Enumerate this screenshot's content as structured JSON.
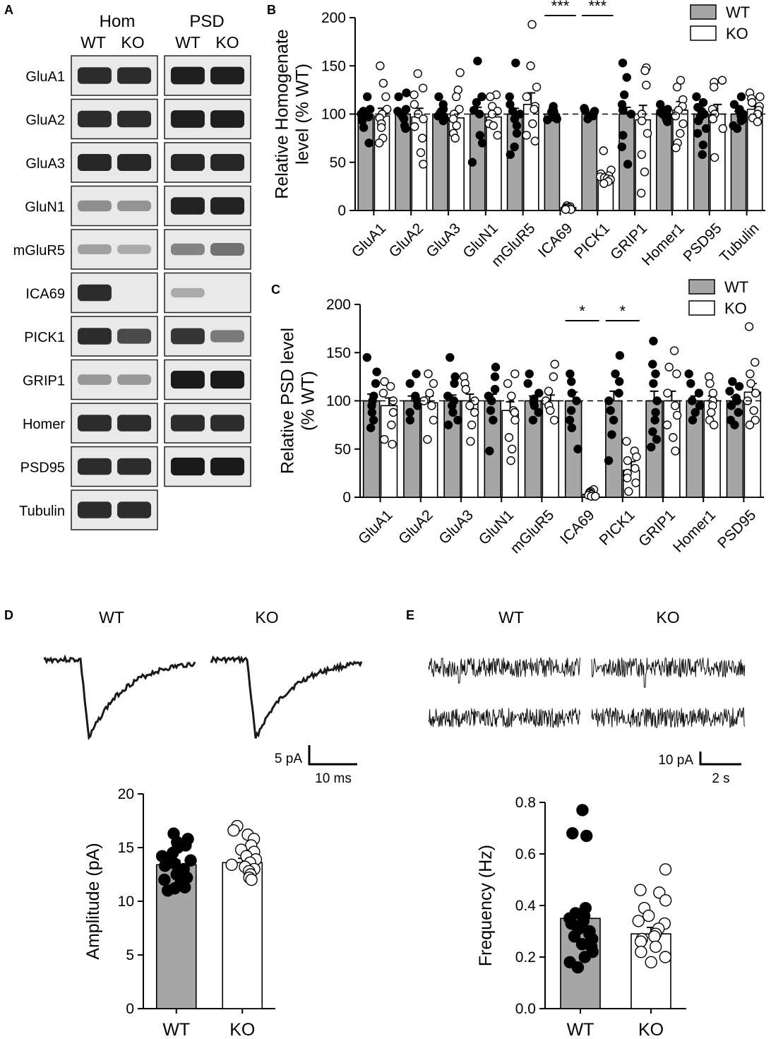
{
  "panel_letters": [
    "A",
    "B",
    "C",
    "D",
    "E"
  ],
  "blot": {
    "groups": [
      {
        "name": "Hom",
        "lanes": [
          "WT",
          "KO"
        ]
      },
      {
        "name": "PSD",
        "lanes": [
          "WT",
          "KO"
        ]
      }
    ],
    "rows": [
      {
        "label": "GluA1",
        "hom": [
          0.85,
          0.85
        ],
        "psd": [
          0.92,
          0.92
        ]
      },
      {
        "label": "GluA2",
        "hom": [
          0.85,
          0.85
        ],
        "psd": [
          0.92,
          0.92
        ]
      },
      {
        "label": "GluA3",
        "hom": [
          0.88,
          0.88
        ],
        "psd": [
          0.88,
          0.88
        ]
      },
      {
        "label": "GluN1",
        "hom": [
          0.35,
          0.32
        ],
        "psd": [
          0.9,
          0.9
        ]
      },
      {
        "label": "mGluR5",
        "hom": [
          0.25,
          0.2
        ],
        "psd": [
          0.4,
          0.5
        ]
      },
      {
        "label": "ICA69",
        "hom": [
          0.85,
          0.0
        ],
        "psd": [
          0.2,
          0.0
        ]
      },
      {
        "label": "PICK1",
        "hom": [
          0.85,
          0.7
        ],
        "psd": [
          0.8,
          0.45
        ]
      },
      {
        "label": "GRIP1",
        "hom": [
          0.3,
          0.3
        ],
        "psd": [
          0.95,
          0.95
        ]
      },
      {
        "label": "Homer",
        "hom": [
          0.85,
          0.85
        ],
        "psd": [
          0.85,
          0.85
        ]
      },
      {
        "label": "PSD95",
        "hom": [
          0.85,
          0.85
        ],
        "psd": [
          0.95,
          0.95
        ]
      },
      {
        "label": "Tubulin",
        "hom": [
          0.85,
          0.85
        ],
        "psd": null
      }
    ]
  },
  "traces": {
    "D": {
      "labels": [
        "WT",
        "KO"
      ],
      "scale_y": "5 pA",
      "scale_x": "10 ms"
    },
    "E": {
      "labels": [
        "WT",
        "KO"
      ],
      "scale_y": "10 pA",
      "scale_x": "2 s"
    }
  },
  "chart_data": [
    {
      "panel": "B",
      "type": "bar",
      "ylabel": "Relative Homogenate level (% WT)",
      "ylabel_lines": [
        "Relative Homogenate",
        "level (% WT)"
      ],
      "ylim": [
        0,
        200
      ],
      "yticks": [
        0,
        50,
        100,
        150,
        200
      ],
      "reference_line": 100,
      "legend": {
        "position": "top-right",
        "entries": [
          "WT",
          "KO"
        ]
      },
      "colors": {
        "WT": "#a6a6a6",
        "KO": "#ffffff"
      },
      "categories": [
        "GluA1",
        "GluA2",
        "GluA3",
        "GluN1",
        "mGluR5",
        "ICA69",
        "PICK1",
        "GRIP1",
        "Homer1",
        "PSD95",
        "Tubulin"
      ],
      "series": [
        {
          "name": "WT",
          "values": [
            100,
            100,
            100,
            100,
            100,
            100,
            100,
            100,
            100,
            100,
            100
          ],
          "sem": [
            4,
            3,
            3,
            7,
            6,
            2,
            2,
            7,
            2,
            5,
            3
          ],
          "points": [
            [
              118,
              105,
              103,
              100,
              98,
              97,
              93,
              86,
              70
            ],
            [
              122,
              118,
              105,
              103,
              100,
              98,
              96,
              95,
              88,
              85
            ],
            [
              118,
              110,
              105,
              103,
              100,
              98,
              95,
              93
            ],
            [
              155,
              118,
              112,
              104,
              100,
              78,
              70,
              50
            ],
            [
              153,
              118,
              110,
              103,
              100,
              95,
              88,
              80,
              66,
              58
            ],
            [
              108,
              105,
              103,
              102,
              100,
              98,
              97,
              95,
              94
            ],
            [
              106,
              104,
              103,
              102,
              100,
              98,
              97,
              95
            ],
            [
              153,
              138,
              120,
              110,
              104,
              100,
              78,
              66,
              48
            ],
            [
              110,
              105,
              103,
              102,
              100,
              98,
              96,
              95,
              92
            ],
            [
              118,
              112,
              107,
              103,
              100,
              97,
              93,
              85,
              80,
              68,
              58
            ],
            [
              118,
              110,
              105,
              103,
              100,
              98,
              95,
              93,
              88,
              85
            ]
          ]
        },
        {
          "name": "KO",
          "values": [
            98,
            97,
            96,
            97,
            110,
            3,
            35,
            94,
            104,
            100,
            105
          ],
          "sem": [
            8,
            9,
            6,
            6,
            12,
            1,
            3,
            15,
            9,
            10,
            3
          ],
          "points": [
            [
              150,
              132,
              118,
              105,
              100,
              96,
              90,
              86,
              75,
              70
            ],
            [
              142,
              127,
              120,
              110,
              100,
              95,
              87,
              75,
              60,
              48
            ],
            [
              143,
              125,
              118,
              105,
              100,
              95,
              88,
              80,
              75
            ],
            [
              120,
              118,
              108,
              103,
              100,
              90,
              88,
              78
            ],
            [
              193,
              150,
              128,
              118,
              108,
              105,
              90,
              78,
              72
            ],
            [
              5,
              4,
              3,
              3,
              2,
              2,
              1,
              1
            ],
            [
              62,
              42,
              38,
              36,
              35,
              34,
              33,
              32,
              30,
              28
            ],
            [
              148,
              145,
              130,
              100,
              93,
              80,
              58,
              40,
              18
            ],
            [
              135,
              128,
              115,
              108,
              104,
              98,
              90,
              80,
              70,
              65
            ],
            [
              135,
              133,
              128,
              105,
              100,
              95,
              85,
              55
            ],
            [
              122,
              118,
              116,
              112,
              108,
              104,
              100,
              96,
              92
            ]
          ]
        }
      ],
      "significance": [
        {
          "category": "ICA69",
          "label": "***"
        },
        {
          "category": "PICK1",
          "label": "***"
        }
      ]
    },
    {
      "panel": "C",
      "type": "bar",
      "ylabel": "Relative PSD level (% WT)",
      "ylabel_lines": [
        "Relative PSD level",
        "(% WT)"
      ],
      "ylim": [
        0,
        200
      ],
      "yticks": [
        0,
        50,
        100,
        150,
        200
      ],
      "reference_line": 100,
      "legend": {
        "position": "top-right",
        "entries": [
          "WT",
          "KO"
        ]
      },
      "colors": {
        "WT": "#a6a6a6",
        "KO": "#ffffff"
      },
      "categories": [
        "GluA1",
        "GluA2",
        "GluA3",
        "GluN1",
        "mGluR5",
        "ICA69",
        "PICK1",
        "GRIP1",
        "Homer1",
        "PSD95"
      ],
      "series": [
        {
          "name": "WT",
          "values": [
            100,
            100,
            100,
            100,
            100,
            100,
            100,
            100,
            100,
            100
          ],
          "sem": [
            7,
            5,
            6,
            7,
            5,
            9,
            10,
            10,
            5,
            4
          ],
          "points": [
            [
              145,
              130,
              118,
              105,
              100,
              95,
              88,
              80,
              72
            ],
            [
              128,
              118,
              105,
              100,
              95,
              88,
              80
            ],
            [
              145,
              125,
              118,
              105,
              100,
              95,
              88,
              80,
              75
            ],
            [
              135,
              125,
              112,
              105,
              100,
              90,
              80,
              48
            ],
            [
              128,
              118,
              108,
              102,
              98,
              95,
              88,
              80
            ],
            [
              128,
              120,
              108,
              100,
              90,
              80,
              72,
              50
            ],
            [
              147,
              128,
              120,
              108,
              100,
              90,
              80,
              65,
              38
            ],
            [
              162,
              138,
              128,
              118,
              100,
              88,
              80,
              68,
              60,
              52
            ],
            [
              128,
              118,
              108,
              100,
              95,
              88,
              80
            ],
            [
              120,
              115,
              110,
              103,
              100,
              95,
              88,
              80,
              75
            ]
          ]
        },
        {
          "name": "KO",
          "values": [
            95,
            98,
            100,
            90,
            100,
            3,
            28,
            100,
            100,
            109
          ],
          "sem": [
            8,
            7,
            7,
            9,
            6,
            1,
            9,
            10,
            5,
            9
          ],
          "points": [
            [
              120,
              115,
              108,
              100,
              88,
              75,
              60,
              55
            ],
            [
              128,
              118,
              108,
              100,
              95,
              80,
              60
            ],
            [
              125,
              118,
              112,
              100,
              95,
              88,
              75,
              58
            ],
            [
              128,
              118,
              105,
              90,
              88,
              80,
              62,
              50,
              38
            ],
            [
              138,
              125,
              110,
              100,
              95,
              90,
              80
            ],
            [
              8,
              6,
              5,
              4,
              3,
              2,
              1,
              1
            ],
            [
              58,
              48,
              42,
              38,
              30,
              25,
              20,
              15,
              6
            ],
            [
              152,
              135,
              128,
              108,
              95,
              85,
              75,
              62,
              48
            ],
            [
              125,
              118,
              108,
              100,
              95,
              88,
              80,
              75
            ],
            [
              177,
              140,
              128,
              118,
              108,
              100,
              90,
              80,
              75
            ]
          ]
        }
      ],
      "significance": [
        {
          "category": "ICA69",
          "label": "*"
        },
        {
          "category": "PICK1",
          "label": "*"
        }
      ]
    },
    {
      "panel": "D",
      "type": "bar",
      "ylabel": "Amplitude (pA)",
      "ylim": [
        0,
        20
      ],
      "yticks": [
        0,
        5,
        10,
        15,
        20
      ],
      "colors": {
        "WT": "#a6a6a6",
        "KO": "#ffffff"
      },
      "categories": [
        "WT",
        "KO"
      ],
      "values": [
        13.4,
        13.6
      ],
      "sem": [
        0.4,
        0.4
      ],
      "points": [
        [
          16.3,
          15.8,
          15.5,
          15.2,
          15,
          14.5,
          14.2,
          14,
          13.8,
          13.5,
          13.3,
          13,
          12.5,
          12.2,
          12,
          11.6,
          11.3,
          11.2,
          11
        ],
        [
          17,
          16.6,
          16.2,
          15.8,
          15.2,
          14.8,
          14.6,
          14.2,
          13.9,
          13.6,
          13.4,
          13.2,
          13,
          12.8,
          12.5,
          12.2,
          12
        ]
      ]
    },
    {
      "panel": "E",
      "type": "bar",
      "ylabel": "Frequency (Hz)",
      "ylim": [
        0,
        0.8
      ],
      "yticks": [
        0.0,
        0.2,
        0.4,
        0.6,
        0.8
      ],
      "ytick_decimals": 1,
      "colors": {
        "WT": "#a6a6a6",
        "KO": "#ffffff"
      },
      "categories": [
        "WT",
        "KO"
      ],
      "values": [
        0.35,
        0.29
      ],
      "sem": [
        0.03,
        0.025
      ],
      "points": [
        [
          0.77,
          0.68,
          0.67,
          0.39,
          0.37,
          0.36,
          0.35,
          0.34,
          0.33,
          0.32,
          0.31,
          0.3,
          0.29,
          0.28,
          0.27,
          0.26,
          0.25,
          0.24,
          0.22,
          0.2,
          0.18,
          0.16
        ],
        [
          0.54,
          0.46,
          0.45,
          0.42,
          0.39,
          0.36,
          0.34,
          0.33,
          0.31,
          0.29,
          0.28,
          0.27,
          0.26,
          0.24,
          0.22,
          0.2,
          0.18
        ]
      ]
    }
  ]
}
